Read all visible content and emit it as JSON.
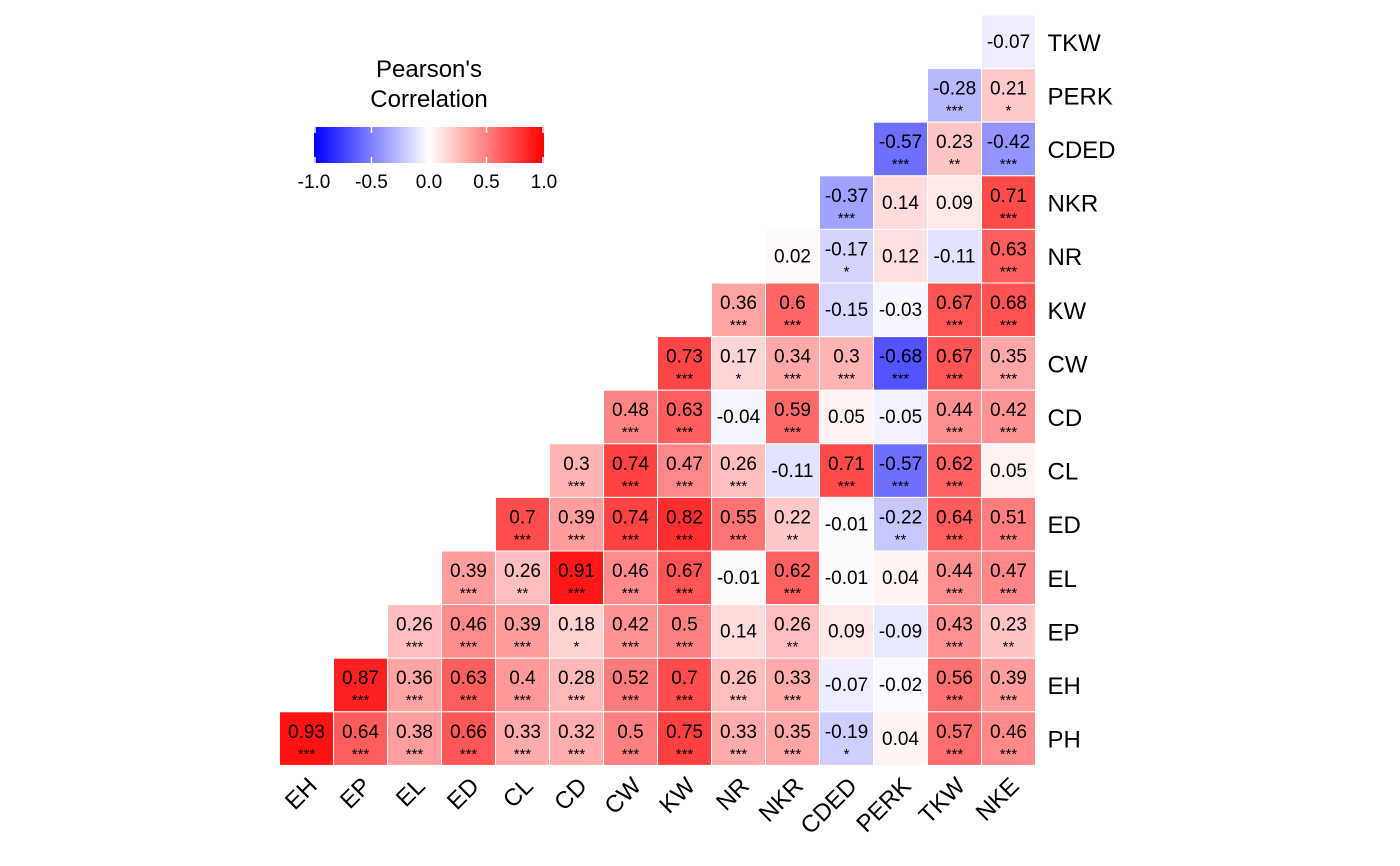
{
  "chart_data": {
    "type": "heatmap",
    "legend": {
      "title_line1": "Pearson's",
      "title_line2": "Correlation",
      "ticks": [
        "-1.0",
        "-0.5",
        "0.0",
        "0.5",
        "1.0"
      ],
      "range": [
        -1.0,
        1.0
      ],
      "colors": {
        "low": "#0000ff",
        "mid": "#ffffff",
        "high": "#ff0000"
      }
    },
    "columns": [
      "EH",
      "EP",
      "EL",
      "ED",
      "CL",
      "CD",
      "CW",
      "KW",
      "NR",
      "NKR",
      "CDED",
      "PERK",
      "TKW",
      "NKE"
    ],
    "rows": [
      {
        "label": "TKW",
        "values": [
          "-0.07"
        ],
        "sig": [
          ""
        ]
      },
      {
        "label": "PERK",
        "values": [
          "-0.28",
          "0.21"
        ],
        "sig": [
          "***",
          "*"
        ]
      },
      {
        "label": "CDED",
        "values": [
          "-0.57",
          "0.23",
          "-0.42"
        ],
        "sig": [
          "***",
          "**",
          "***"
        ]
      },
      {
        "label": "NKR",
        "values": [
          "-0.37",
          "0.14",
          "0.09",
          "0.71"
        ],
        "sig": [
          "***",
          "",
          "",
          "***"
        ]
      },
      {
        "label": "NR",
        "values": [
          "0.02",
          "-0.17",
          "0.12",
          "-0.11",
          "0.63"
        ],
        "sig": [
          "",
          "*",
          "",
          "",
          "***"
        ]
      },
      {
        "label": "KW",
        "values": [
          "0.36",
          "0.6",
          "-0.15",
          "-0.03",
          "0.67",
          "0.68"
        ],
        "sig": [
          "***",
          "***",
          "",
          "",
          "***",
          "***"
        ]
      },
      {
        "label": "CW",
        "values": [
          "0.73",
          "0.17",
          "0.34",
          "0.3",
          "-0.68",
          "0.67",
          "0.35"
        ],
        "sig": [
          "***",
          "*",
          "***",
          "***",
          "***",
          "***",
          "***"
        ]
      },
      {
        "label": "CD",
        "values": [
          "0.48",
          "0.63",
          "-0.04",
          "0.59",
          "0.05",
          "-0.05",
          "0.44",
          "0.42"
        ],
        "sig": [
          "***",
          "***",
          "",
          "***",
          "",
          "",
          "***",
          "***"
        ]
      },
      {
        "label": "CL",
        "values": [
          "0.3",
          "0.74",
          "0.47",
          "0.26",
          "-0.11",
          "0.71",
          "-0.57",
          "0.62",
          "0.05"
        ],
        "sig": [
          "***",
          "***",
          "***",
          "***",
          "",
          "***",
          "***",
          "***",
          ""
        ]
      },
      {
        "label": "ED",
        "values": [
          "0.7",
          "0.39",
          "0.74",
          "0.82",
          "0.55",
          "0.22",
          "-0.01",
          "-0.22",
          "0.64",
          "0.51"
        ],
        "sig": [
          "***",
          "***",
          "***",
          "***",
          "***",
          "**",
          "",
          "**",
          "***",
          "***"
        ]
      },
      {
        "label": "EL",
        "values": [
          "0.39",
          "0.26",
          "0.91",
          "0.46",
          "0.67",
          "-0.01",
          "0.62",
          "-0.01",
          "0.04",
          "0.44",
          "0.47"
        ],
        "sig": [
          "***",
          "**",
          "***",
          "***",
          "***",
          "",
          "***",
          "",
          "",
          "***",
          "***"
        ]
      },
      {
        "label": "EP",
        "values": [
          "0.26",
          "0.46",
          "0.39",
          "0.18",
          "0.42",
          "0.5",
          "0.14",
          "0.26",
          "0.09",
          "-0.09",
          "0.43",
          "0.23"
        ],
        "sig": [
          "***",
          "***",
          "***",
          "*",
          "***",
          "***",
          "",
          "**",
          "",
          "",
          "***",
          "**"
        ]
      },
      {
        "label": "EH",
        "values": [
          "0.87",
          "0.36",
          "0.63",
          "0.4",
          "0.28",
          "0.52",
          "0.7",
          "0.26",
          "0.33",
          "-0.07",
          "-0.02",
          "0.56",
          "0.39"
        ],
        "sig": [
          "***",
          "***",
          "***",
          "***",
          "***",
          "***",
          "***",
          "***",
          "***",
          "",
          "",
          "***",
          "***"
        ]
      },
      {
        "label": "PH",
        "values": [
          "0.93",
          "0.64",
          "0.38",
          "0.66",
          "0.33",
          "0.32",
          "0.5",
          "0.75",
          "0.33",
          "0.35",
          "-0.19",
          "0.04",
          "0.57",
          "0.46"
        ],
        "sig": [
          "***",
          "***",
          "***",
          "***",
          "***",
          "***",
          "***",
          "***",
          "***",
          "***",
          "*",
          "",
          "***",
          "***"
        ]
      }
    ]
  }
}
